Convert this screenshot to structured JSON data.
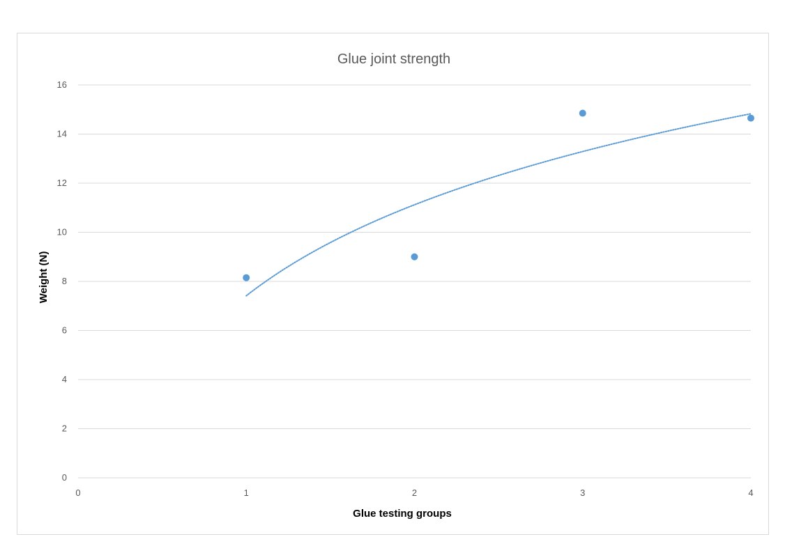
{
  "chart_data": {
    "type": "scatter",
    "title": "Glue joint strength",
    "xlabel": "Glue testing groups",
    "ylabel": "Weight (N)",
    "xlim": [
      0,
      4
    ],
    "ylim": [
      0,
      16
    ],
    "x_ticks": [
      "0",
      "1",
      "2",
      "3",
      "4"
    ],
    "y_ticks": [
      "0",
      "2",
      "4",
      "6",
      "8",
      "10",
      "12",
      "14",
      "16"
    ],
    "grid": "horizontal",
    "legend": "none",
    "series": [
      {
        "x": [
          1,
          2,
          3,
          4
        ],
        "y": [
          8.15,
          9.0,
          14.85,
          14.65
        ],
        "color": "#5b9bd5"
      }
    ],
    "trendline": {
      "type": "logarithmic",
      "style": "dotted",
      "color": "#5b9bd5",
      "x_range": [
        1,
        4
      ]
    }
  }
}
